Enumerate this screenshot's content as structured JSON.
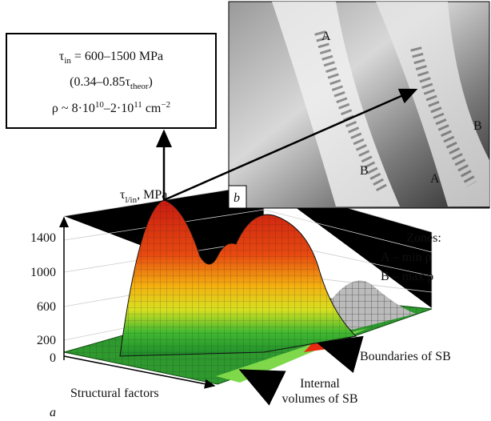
{
  "info_box": {
    "line1": {
      "symbol": "τ",
      "sub": "in",
      "text": " = 600–1500 MPa"
    },
    "line2": {
      "pre": "(0.34–0.85τ",
      "sub": "theor",
      "post": ")"
    },
    "line3": {
      "pre": "ρ ~ 8·10",
      "sup1": "10",
      "mid": "–2·10",
      "sup2": "11",
      "post": " cm",
      "sup3": "−2"
    }
  },
  "axis": {
    "symbol": "τ",
    "sub": "l/in",
    "unit": ", MPa",
    "ticks": [
      "1400",
      "1000",
      "600",
      "200",
      "0"
    ]
  },
  "zones": {
    "title": "Zones:",
    "a": "A – min ρ",
    "b": "B – max ρ"
  },
  "labels": {
    "boundaries": "Boundaries of SB",
    "internal1": "Internal",
    "internal2": "volumes of SB",
    "structural": "Structural factors",
    "panel_a": "a",
    "panel_b": "b"
  },
  "micrograph": {
    "letters": [
      "A",
      "A",
      "B",
      "B"
    ]
  }
}
